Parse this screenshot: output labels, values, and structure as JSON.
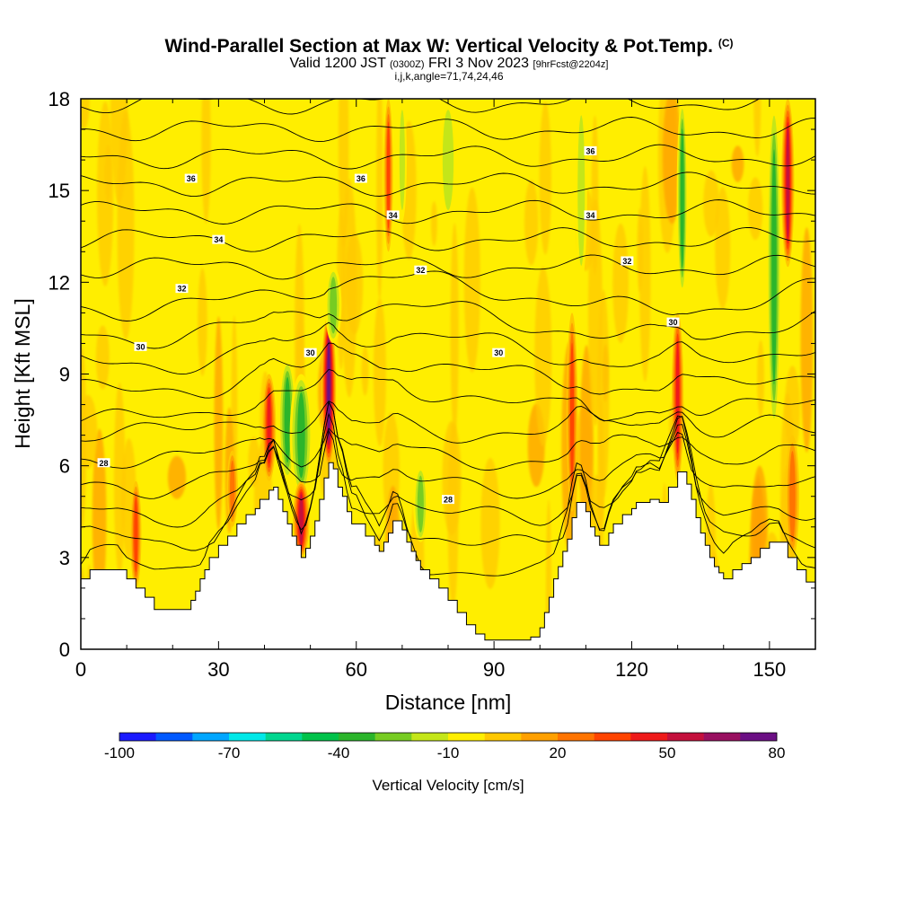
{
  "title": "Wind-Parallel Section at Max W: Vertical Velocity & Pot.Temp.",
  "title_mark": "(C)",
  "subtitle_prefix": "Valid 1200 JST",
  "subtitle_utc": "(0300Z)",
  "subtitle_date": "FRI 3 Nov 2023",
  "subtitle_forecast": "[9hrFcst@2204z]",
  "subtitle_indices": "i,j,k,angle=71,74,24,46",
  "chart_data": {
    "type": "heatmap",
    "xlabel": "Distance [nm]",
    "ylabel": "Height [Kft MSL]",
    "xlim": [
      0,
      160
    ],
    "ylim": [
      0,
      18
    ],
    "x_ticks": [
      0,
      30,
      60,
      90,
      120,
      150
    ],
    "y_ticks": [
      0,
      3,
      6,
      9,
      12,
      15,
      18
    ],
    "colorbar": {
      "title": "Vertical Velocity [cm/s]",
      "levels": [
        -100,
        -90,
        -80,
        -70,
        -60,
        -50,
        -40,
        -30,
        -20,
        -10,
        0,
        10,
        20,
        30,
        40,
        50,
        60,
        70,
        80
      ],
      "tick_labels": [
        "-100",
        "-70",
        "-40",
        "-10",
        "20",
        "50",
        "80"
      ],
      "colors": [
        "#1a1aff",
        "#0059ff",
        "#00a6ff",
        "#00e8e8",
        "#00d68f",
        "#00c24a",
        "#2bb52b",
        "#77cc22",
        "#c4e619",
        "#ffee00",
        "#ffc800",
        "#ffa000",
        "#ff7400",
        "#ff4400",
        "#ee1a1a",
        "#c4103c",
        "#991060",
        "#6b0f84"
      ]
    },
    "background_level": -5,
    "terrain_kft": [
      [
        0,
        2.3
      ],
      [
        2,
        2.6
      ],
      [
        4,
        2.6
      ],
      [
        6,
        2.6
      ],
      [
        8,
        2.6
      ],
      [
        10,
        2.3
      ],
      [
        12,
        2.0
      ],
      [
        14,
        1.7
      ],
      [
        16,
        1.3
      ],
      [
        18,
        1.3
      ],
      [
        20,
        1.3
      ],
      [
        22,
        1.3
      ],
      [
        24,
        1.6
      ],
      [
        25,
        1.9
      ],
      [
        26,
        2.3
      ],
      [
        27,
        2.6
      ],
      [
        28,
        3.0
      ],
      [
        30,
        3.4
      ],
      [
        32,
        3.7
      ],
      [
        34,
        4.1
      ],
      [
        36,
        4.4
      ],
      [
        38,
        4.6
      ],
      [
        39,
        4.9
      ],
      [
        40,
        4.9
      ],
      [
        41,
        5.2
      ],
      [
        42,
        5.3
      ],
      [
        43,
        4.9
      ],
      [
        44,
        4.5
      ],
      [
        45,
        4.1
      ],
      [
        46,
        3.7
      ],
      [
        47,
        3.4
      ],
      [
        48,
        3.0
      ],
      [
        49,
        3.3
      ],
      [
        50,
        3.7
      ],
      [
        51,
        4.2
      ],
      [
        52,
        4.9
      ],
      [
        53,
        5.6
      ],
      [
        54,
        6.1
      ],
      [
        55,
        5.9
      ],
      [
        56,
        5.3
      ],
      [
        57,
        5.0
      ],
      [
        58,
        4.5
      ],
      [
        59,
        4.1
      ],
      [
        60,
        4.1
      ],
      [
        62,
        3.7
      ],
      [
        64,
        3.4
      ],
      [
        65,
        3.2
      ],
      [
        66,
        3.5
      ],
      [
        67,
        3.8
      ],
      [
        68,
        4.2
      ],
      [
        69,
        4.2
      ],
      [
        70,
        3.9
      ],
      [
        71,
        3.5
      ],
      [
        72,
        3.2
      ],
      [
        73,
        2.9
      ],
      [
        74,
        2.6
      ],
      [
        76,
        2.3
      ],
      [
        78,
        2.0
      ],
      [
        80,
        1.6
      ],
      [
        82,
        1.2
      ],
      [
        84,
        0.8
      ],
      [
        86,
        0.5
      ],
      [
        88,
        0.3
      ],
      [
        90,
        0.3
      ],
      [
        92,
        0.3
      ],
      [
        94,
        0.3
      ],
      [
        96,
        0.3
      ],
      [
        98,
        0.4
      ],
      [
        100,
        0.7
      ],
      [
        101,
        1.2
      ],
      [
        102,
        1.7
      ],
      [
        103,
        2.3
      ],
      [
        104,
        2.7
      ],
      [
        105,
        3.2
      ],
      [
        106,
        3.6
      ],
      [
        107,
        4.3
      ],
      [
        108,
        4.8
      ],
      [
        109,
        4.8
      ],
      [
        110,
        4.5
      ],
      [
        111,
        4.0
      ],
      [
        112,
        3.7
      ],
      [
        113,
        3.4
      ],
      [
        114,
        3.4
      ],
      [
        115,
        3.8
      ],
      [
        116,
        4.1
      ],
      [
        118,
        4.4
      ],
      [
        120,
        4.6
      ],
      [
        121,
        4.8
      ],
      [
        122,
        4.8
      ],
      [
        124,
        4.9
      ],
      [
        126,
        4.8
      ],
      [
        128,
        5.3
      ],
      [
        130,
        5.8
      ],
      [
        131,
        5.8
      ],
      [
        132,
        5.4
      ],
      [
        133,
        4.9
      ],
      [
        134,
        4.3
      ],
      [
        135,
        3.8
      ],
      [
        136,
        3.4
      ],
      [
        137,
        3.0
      ],
      [
        138,
        2.7
      ],
      [
        139,
        2.5
      ],
      [
        140,
        2.3
      ],
      [
        142,
        2.6
      ],
      [
        144,
        2.8
      ],
      [
        146,
        3.0
      ],
      [
        148,
        3.3
      ],
      [
        150,
        3.5
      ],
      [
        152,
        3.5
      ],
      [
        154,
        3.0
      ],
      [
        156,
        2.6
      ],
      [
        158,
        2.2
      ],
      [
        160,
        2.0
      ]
    ],
    "w_features": [
      {
        "x": 12,
        "y0": 2.0,
        "y1": 5.5,
        "w": 1.2,
        "v": 40
      },
      {
        "x": 33,
        "y0": 4.0,
        "y1": 6.5,
        "w": 1.2,
        "v": 30
      },
      {
        "x": 41,
        "y0": 5.5,
        "y1": 9.0,
        "w": 1.5,
        "v": 48
      },
      {
        "x": 45,
        "y0": 5.5,
        "y1": 9.5,
        "w": 2.0,
        "v": -38
      },
      {
        "x": 48,
        "y0": 5.0,
        "y1": 9.0,
        "w": 2.5,
        "v": -42
      },
      {
        "x": 48,
        "y0": 3.0,
        "y1": 5.5,
        "w": 1.8,
        "v": 55
      },
      {
        "x": 54,
        "y0": 6.0,
        "y1": 11.0,
        "w": 1.6,
        "v": 78
      },
      {
        "x": 55,
        "y0": 10.0,
        "y1": 12.5,
        "w": 1.8,
        "v": -30
      },
      {
        "x": 67,
        "y0": 13.0,
        "y1": 18.0,
        "w": 1.0,
        "v": 38
      },
      {
        "x": 70,
        "y0": 14.0,
        "y1": 18.0,
        "w": 1.0,
        "v": -22
      },
      {
        "x": 74,
        "y0": 3.5,
        "y1": 6.0,
        "w": 1.6,
        "v": -32
      },
      {
        "x": 80,
        "y0": 14.0,
        "y1": 18.0,
        "w": 2.0,
        "v": -20
      },
      {
        "x": 107,
        "y0": 4.5,
        "y1": 11.0,
        "w": 1.2,
        "v": 38
      },
      {
        "x": 109,
        "y0": 12.0,
        "y1": 18.0,
        "w": 1.3,
        "v": -22
      },
      {
        "x": 130,
        "y0": 5.5,
        "y1": 11.0,
        "w": 1.3,
        "v": 50
      },
      {
        "x": 131,
        "y0": 11.5,
        "y1": 18.0,
        "w": 1.2,
        "v": -35
      },
      {
        "x": 151,
        "y0": 7.0,
        "y1": 18.0,
        "w": 1.6,
        "v": -42
      },
      {
        "x": 154,
        "y0": 12.5,
        "y1": 18.0,
        "w": 1.4,
        "v": 55
      },
      {
        "x": 155,
        "y0": 3.0,
        "y1": 7.0,
        "w": 1.5,
        "v": 30
      }
    ],
    "contour_labels": [
      {
        "x": 24,
        "y": 15.4,
        "text": "36"
      },
      {
        "x": 61,
        "y": 15.4,
        "text": "36"
      },
      {
        "x": 111,
        "y": 16.3,
        "text": "36"
      },
      {
        "x": 68,
        "y": 14.2,
        "text": "34"
      },
      {
        "x": 111,
        "y": 14.2,
        "text": "34"
      },
      {
        "x": 30,
        "y": 13.4,
        "text": "34"
      },
      {
        "x": 74,
        "y": 12.4,
        "text": "32"
      },
      {
        "x": 119,
        "y": 12.7,
        "text": "32"
      },
      {
        "x": 22,
        "y": 11.8,
        "text": "32"
      },
      {
        "x": 13,
        "y": 9.9,
        "text": "30"
      },
      {
        "x": 50,
        "y": 9.7,
        "text": "30"
      },
      {
        "x": 91,
        "y": 9.7,
        "text": "30"
      },
      {
        "x": 129,
        "y": 10.7,
        "text": "30"
      },
      {
        "x": 5,
        "y": 6.1,
        "text": "28"
      },
      {
        "x": 80,
        "y": 4.9,
        "text": "28"
      }
    ]
  }
}
